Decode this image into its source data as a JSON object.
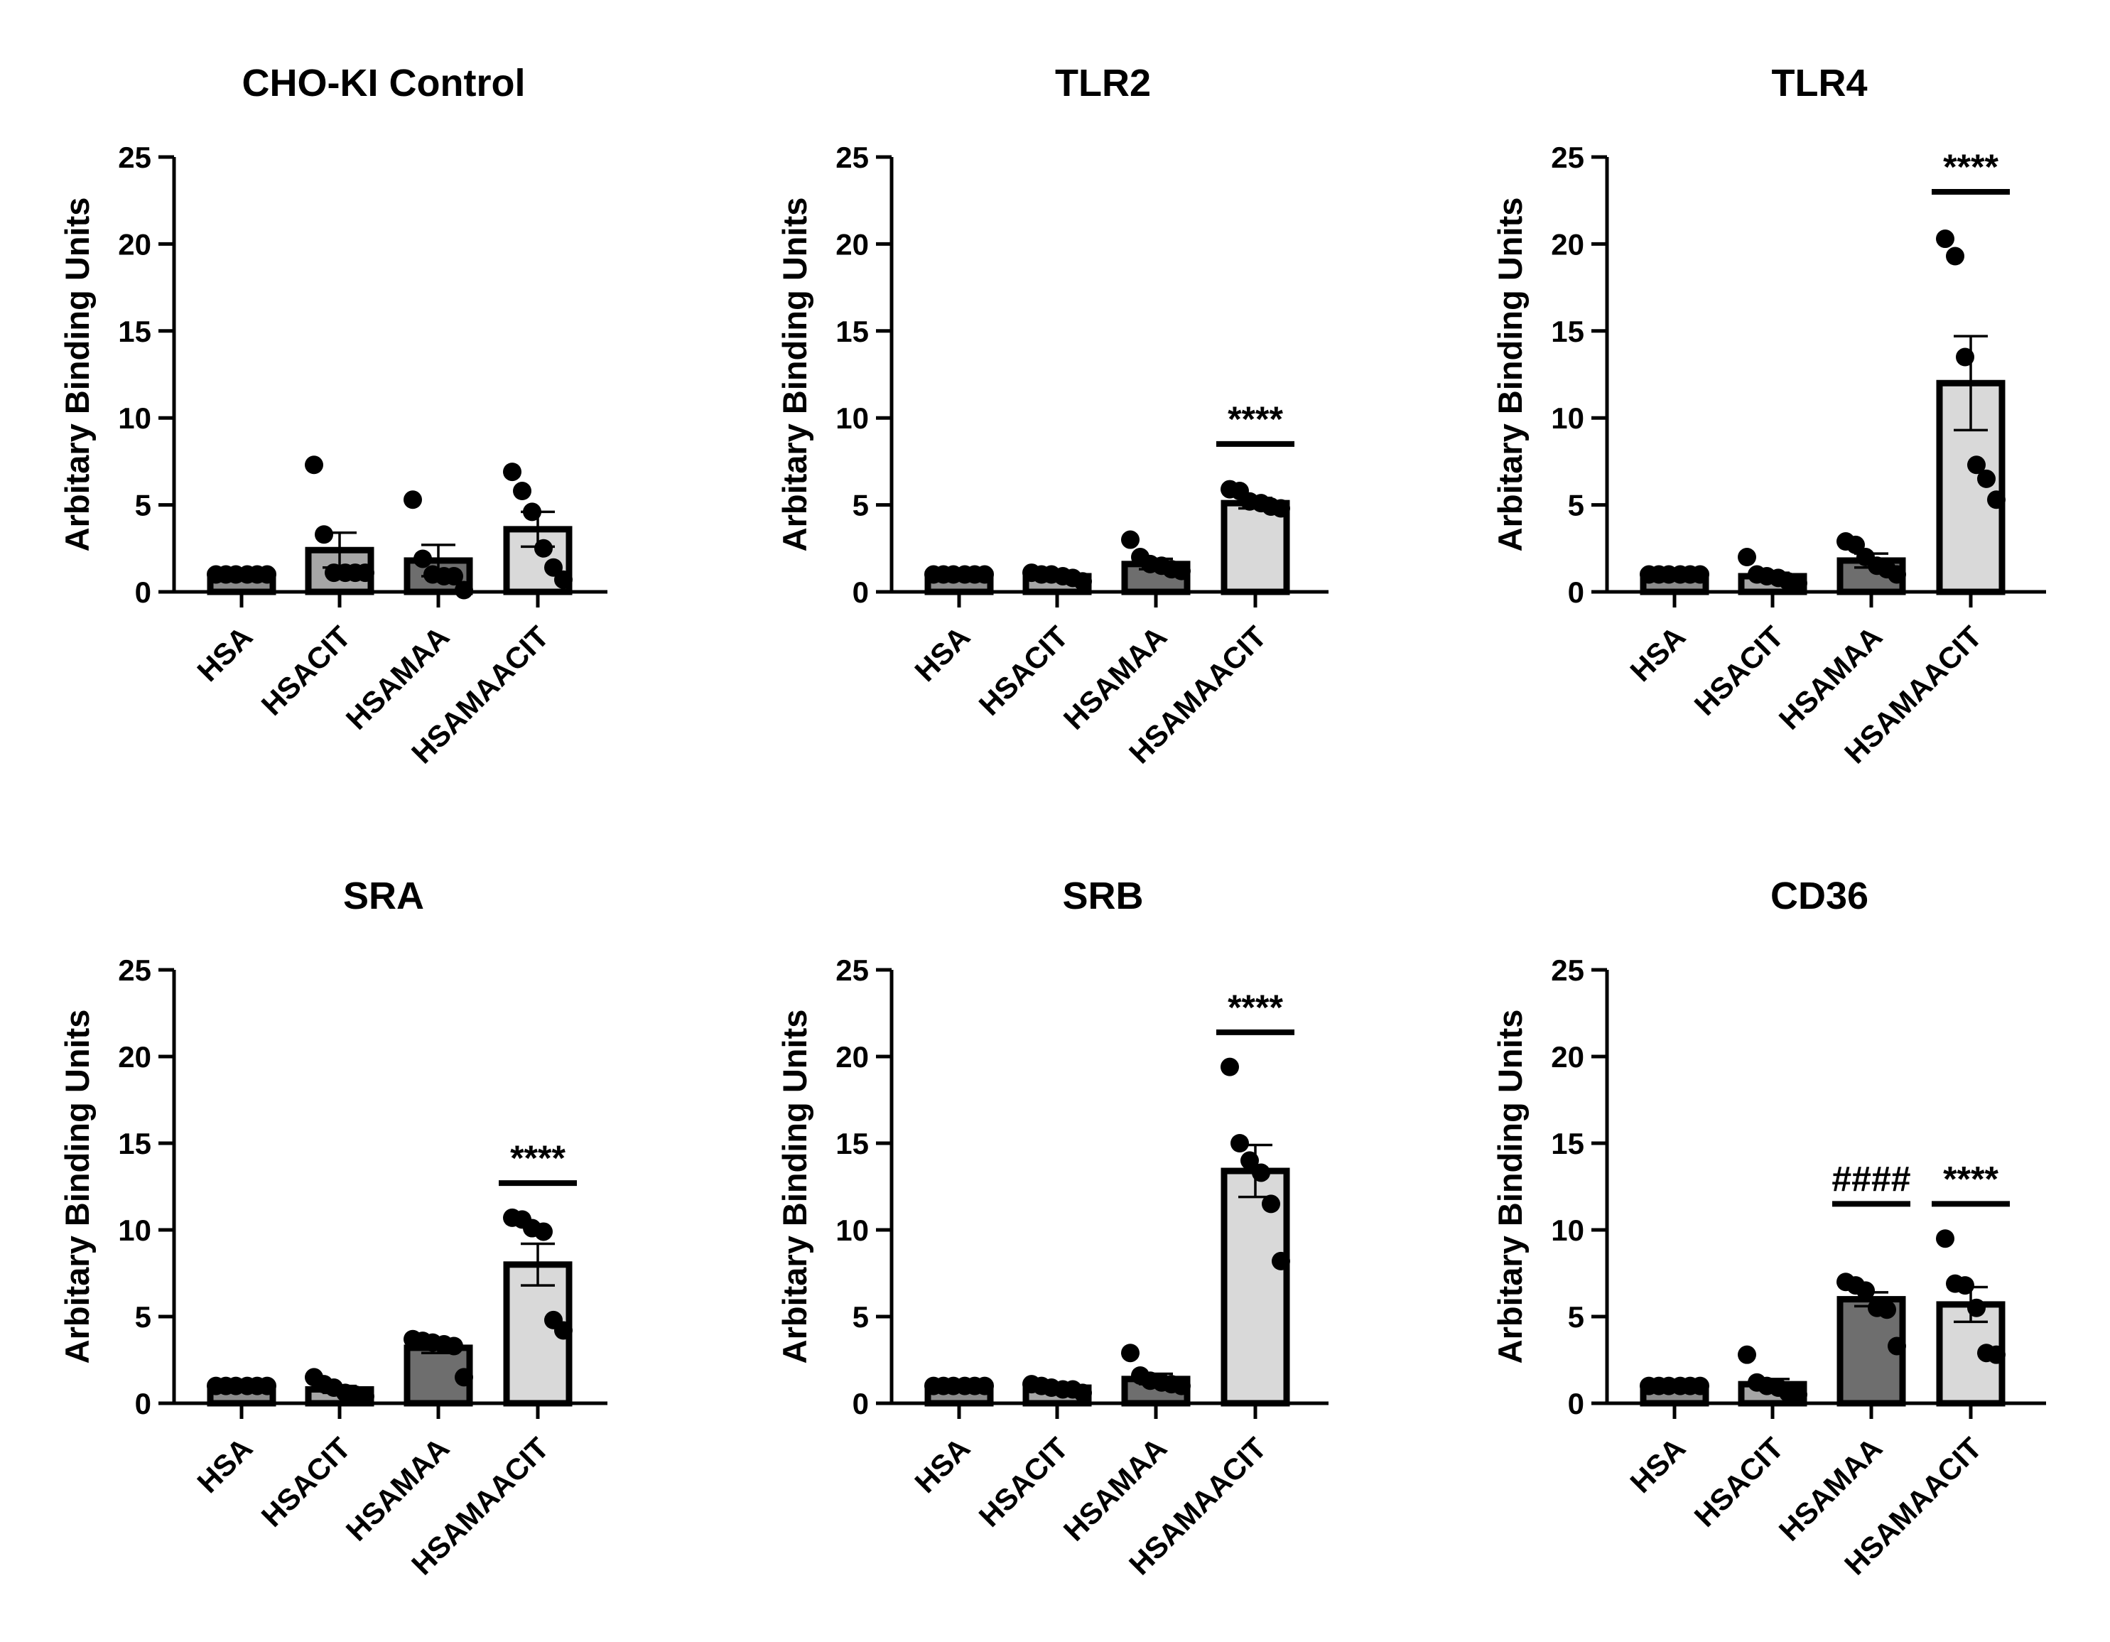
{
  "figure": {
    "ylabel": "Arbitary Binding Units",
    "categories": [
      "HSA",
      "HSACIT",
      "HSAMAA",
      "HSAMAACIT"
    ],
    "yticks": [
      0,
      5,
      10,
      15,
      20,
      25
    ],
    "ylim": [
      0,
      25
    ],
    "colors": {
      "HSA": "#8c8c8c",
      "HSACIT": "#a6a6a6",
      "HSAMAA": "#6e6e6e",
      "HSAMAACIT": "#d9d9d9"
    }
  },
  "chart_data": [
    {
      "type": "bar",
      "title": "CHO-KI Control",
      "ylabel": "Arbitary Binding Units",
      "categories": [
        "HSA",
        "HSACIT",
        "HSAMAA",
        "HSAMAACIT"
      ],
      "values": [
        1.0,
        2.4,
        1.8,
        3.6
      ],
      "errors": [
        0.0,
        1.0,
        0.9,
        1.0
      ],
      "points": [
        [
          1,
          1,
          1,
          1,
          1,
          1
        ],
        [
          7.3,
          3.3,
          1.1,
          1.1,
          1.1,
          1.1
        ],
        [
          5.3,
          1.9,
          1.0,
          0.9,
          0.9,
          0.1
        ],
        [
          6.9,
          5.8,
          4.6,
          2.5,
          1.4,
          0.7
        ]
      ],
      "significance": [],
      "ylim": [
        0,
        25
      ]
    },
    {
      "type": "bar",
      "title": "TLR2",
      "ylabel": "Arbitary Binding Units",
      "categories": [
        "HSA",
        "HSACIT",
        "HSAMAA",
        "HSAMAACIT"
      ],
      "values": [
        1.0,
        0.9,
        1.6,
        5.1
      ],
      "errors": [
        0.0,
        0.1,
        0.3,
        0.3
      ],
      "points": [
        [
          1,
          1,
          1,
          1,
          1,
          1
        ],
        [
          1.1,
          1.0,
          1.0,
          0.9,
          0.8,
          0.6
        ],
        [
          3.0,
          2.0,
          1.6,
          1.5,
          1.3,
          1.2
        ],
        [
          5.9,
          5.8,
          5.2,
          5.1,
          4.9,
          4.8
        ]
      ],
      "significance": [
        {
          "category": "HSAMAACIT",
          "label": "****",
          "y": 8.5
        }
      ],
      "ylim": [
        0,
        25
      ]
    },
    {
      "type": "bar",
      "title": "TLR4",
      "ylabel": "Arbitary Binding Units",
      "categories": [
        "HSA",
        "HSACIT",
        "HSAMAA",
        "HSAMAACIT"
      ],
      "values": [
        1.0,
        0.9,
        1.8,
        12.0
      ],
      "errors": [
        0.0,
        0.2,
        0.4,
        2.7
      ],
      "points": [
        [
          1,
          1,
          1,
          1,
          1,
          1
        ],
        [
          2.0,
          1.0,
          0.9,
          0.8,
          0.6,
          0.5
        ],
        [
          2.9,
          2.7,
          2.0,
          1.5,
          1.3,
          1.0
        ],
        [
          20.3,
          19.3,
          13.5,
          7.3,
          6.5,
          5.3
        ]
      ],
      "significance": [
        {
          "category": "HSAMAACIT",
          "label": "****",
          "y": 23
        }
      ],
      "ylim": [
        0,
        25
      ]
    },
    {
      "type": "bar",
      "title": "SRA",
      "ylabel": "Arbitary Binding Units",
      "categories": [
        "HSA",
        "HSACIT",
        "HSAMAA",
        "HSAMAACIT"
      ],
      "values": [
        1.0,
        0.8,
        3.2,
        8.0
      ],
      "errors": [
        0.0,
        0.2,
        0.3,
        1.2
      ],
      "points": [
        [
          1,
          1,
          1,
          1,
          1,
          1
        ],
        [
          1.5,
          1.1,
          0.9,
          0.6,
          0.5,
          0.4
        ],
        [
          3.7,
          3.6,
          3.5,
          3.4,
          3.3,
          1.5
        ],
        [
          10.7,
          10.6,
          10.1,
          9.9,
          4.8,
          4.2
        ]
      ],
      "significance": [
        {
          "category": "HSAMAACIT",
          "label": "****",
          "y": 12.7
        }
      ],
      "ylim": [
        0,
        25
      ]
    },
    {
      "type": "bar",
      "title": "SRB",
      "ylabel": "Arbitary Binding Units",
      "categories": [
        "HSA",
        "HSACIT",
        "HSAMAA",
        "HSAMAACIT"
      ],
      "values": [
        1.0,
        0.9,
        1.4,
        13.4
      ],
      "errors": [
        0.0,
        0.1,
        0.3,
        1.5
      ],
      "points": [
        [
          1,
          1,
          1,
          1,
          1,
          1
        ],
        [
          1.1,
          1.0,
          0.9,
          0.8,
          0.8,
          0.6
        ],
        [
          2.9,
          1.6,
          1.3,
          1.2,
          1.1,
          1.0
        ],
        [
          19.4,
          15.0,
          14.0,
          13.3,
          11.5,
          8.2
        ]
      ],
      "significance": [
        {
          "category": "HSAMAACIT",
          "label": "****",
          "y": 21.4
        }
      ],
      "ylim": [
        0,
        25
      ]
    },
    {
      "type": "bar",
      "title": "CD36",
      "ylabel": "Arbitary Binding Units",
      "categories": [
        "HSA",
        "HSACIT",
        "HSAMAA",
        "HSAMAACIT"
      ],
      "values": [
        1.0,
        1.1,
        6.0,
        5.7
      ],
      "errors": [
        0.0,
        0.3,
        0.4,
        1.0
      ],
      "points": [
        [
          1,
          1,
          1,
          1,
          1,
          1
        ],
        [
          2.8,
          1.2,
          1.0,
          0.9,
          0.6,
          0.5
        ],
        [
          7.0,
          6.8,
          6.5,
          5.5,
          5.4,
          3.3
        ],
        [
          9.5,
          6.9,
          6.8,
          5.5,
          2.9,
          2.8
        ]
      ],
      "significance": [
        {
          "category": "HSAMAA",
          "label": "####",
          "y": 11.5
        },
        {
          "category": "HSAMAACIT",
          "label": "****",
          "y": 11.5
        }
      ],
      "ylim": [
        0,
        25
      ]
    }
  ]
}
